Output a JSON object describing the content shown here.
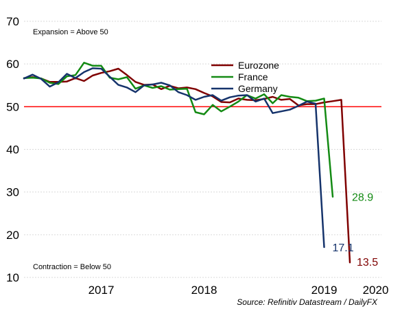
{
  "chart_data": {
    "type": "line",
    "title": "",
    "xlabel": "",
    "ylabel": "",
    "ylim": [
      10,
      70
    ],
    "yticks": [
      10,
      20,
      30,
      40,
      50,
      60,
      70
    ],
    "grid": true,
    "x_start": "2016-09",
    "x_end": "2020-04",
    "year_labels": [
      {
        "label": "2017",
        "month_index": 9
      },
      {
        "label": "2018",
        "month_index": 21
      },
      {
        "label": "2019",
        "month_index": 35
      },
      {
        "label": "2020",
        "month_index": 41
      }
    ],
    "reference_line": {
      "value": 50,
      "color": "#ff0000"
    },
    "annotations": {
      "expansion": "Expansion = Above 50",
      "contraction": "Contraction = Below 50"
    },
    "source": "Source: Refinitiv Datastream / DailyFX",
    "legend_position": "top-center",
    "series": [
      {
        "name": "Eurozone",
        "color": "#7f0000",
        "end_label": "13.5",
        "values": [
          56.7,
          56.9,
          56.6,
          55.8,
          55.8,
          55.9,
          56.7,
          56.0,
          57.3,
          57.9,
          58.3,
          58.9,
          57.4,
          55.8,
          55.1,
          55.2,
          54.1,
          54.9,
          54.3,
          54.5,
          54.1,
          53.2,
          52.4,
          51.1,
          51.0,
          51.9,
          51.6,
          51.5,
          51.8,
          52.3,
          51.6,
          51.8,
          50.3,
          50.6,
          50.6,
          51.0,
          51.3,
          51.6,
          13.5
        ]
      },
      {
        "name": "France",
        "color": "#138a13",
        "end_label": "28.9",
        "values": [
          56.7,
          56.8,
          56.6,
          55.6,
          55.3,
          57.1,
          57.4,
          60.3,
          59.6,
          59.6,
          56.8,
          56.4,
          56.9,
          54.2,
          55.0,
          54.4,
          54.8,
          54.0,
          54.1,
          54.2,
          48.7,
          48.2,
          50.4,
          48.9,
          50.0,
          51.2,
          52.7,
          51.9,
          52.9,
          50.8,
          52.7,
          52.3,
          52.1,
          51.3,
          51.4,
          51.9,
          28.9
        ]
      },
      {
        "name": "Germany",
        "color": "#15336b",
        "end_label": "17.1",
        "values": [
          56.6,
          57.5,
          56.5,
          54.7,
          55.7,
          57.7,
          56.7,
          58.1,
          59.0,
          58.9,
          57.0,
          55.1,
          54.5,
          53.4,
          55.0,
          55.2,
          55.6,
          55.0,
          53.4,
          52.7,
          51.6,
          52.3,
          52.7,
          51.4,
          52.2,
          52.6,
          52.7,
          51.2,
          51.9,
          48.5,
          48.9,
          49.3,
          50.2,
          51.2,
          50.7,
          17.1
        ]
      }
    ]
  }
}
